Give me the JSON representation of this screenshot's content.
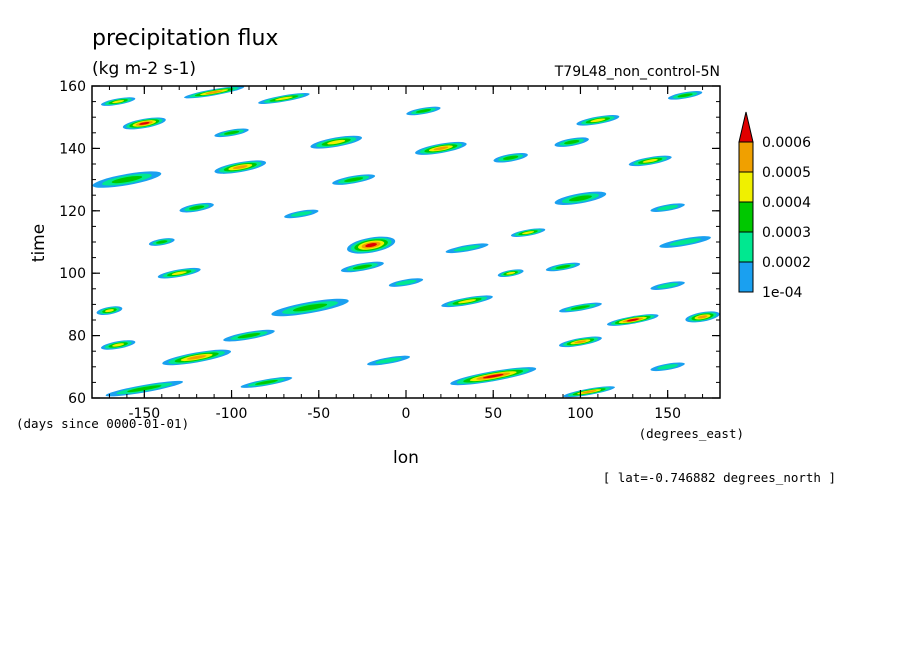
{
  "chart_data": {
    "type": "heatmap",
    "title": "precipitation flux",
    "units": "(kg m-2 s-1)",
    "dataset_label": "T79L48_non_control-5N",
    "xlabel": "lon",
    "x_units": "(degrees_east)",
    "ylabel": "time",
    "y_units": "(days since 0000-01-01)",
    "slice_note": "[ lat=-0.746882 degrees_north ]",
    "xlim": [
      -180,
      180
    ],
    "ylim": [
      60,
      160
    ],
    "x_ticks": [
      -150,
      -100,
      -50,
      0,
      50,
      100,
      150
    ],
    "x_tick_labels": [
      "-150",
      "-100",
      "-50",
      "0",
      "50",
      "100",
      "150"
    ],
    "y_ticks": [
      60,
      80,
      100,
      120,
      140,
      160
    ],
    "y_tick_labels": [
      "60",
      "80",
      "100",
      "120",
      "140",
      "160"
    ],
    "colorbar": {
      "levels": [
        0.0001,
        0.0002,
        0.0003,
        0.0004,
        0.0005,
        0.0006
      ],
      "level_labels": [
        "1e-04",
        "0.0002",
        "0.0003",
        "0.0004",
        "0.0005",
        "0.0006"
      ],
      "colors": [
        "#1aa0f0",
        "#00e890",
        "#00c800",
        "#f0f000",
        "#f0a000",
        "#e00000"
      ],
      "extend": "max"
    },
    "features": [
      {
        "lon": -20,
        "time": 109,
        "len": 28,
        "thick": 2.4,
        "level": 6
      },
      {
        "lon": -95,
        "time": 134,
        "len": 30,
        "thick": 1.6,
        "level": 5
      },
      {
        "lon": -150,
        "time": 148,
        "len": 25,
        "thick": 1.5,
        "level": 6
      },
      {
        "lon": -160,
        "time": 130,
        "len": 40,
        "thick": 1.8,
        "level": 3
      },
      {
        "lon": -120,
        "time": 121,
        "len": 20,
        "thick": 1.2,
        "level": 3
      },
      {
        "lon": -70,
        "time": 156,
        "len": 30,
        "thick": 1.0,
        "level": 4
      },
      {
        "lon": -110,
        "time": 158,
        "len": 35,
        "thick": 1.0,
        "level": 5
      },
      {
        "lon": -165,
        "time": 155,
        "len": 20,
        "thick": 1.0,
        "level": 4
      },
      {
        "lon": -40,
        "time": 142,
        "len": 30,
        "thick": 1.5,
        "level": 4
      },
      {
        "lon": -30,
        "time": 130,
        "len": 25,
        "thick": 1.2,
        "level": 3
      },
      {
        "lon": 20,
        "time": 140,
        "len": 30,
        "thick": 1.5,
        "level": 5
      },
      {
        "lon": 60,
        "time": 137,
        "len": 20,
        "thick": 1.2,
        "level": 3
      },
      {
        "lon": 95,
        "time": 142,
        "len": 20,
        "thick": 1.2,
        "level": 3
      },
      {
        "lon": 140,
        "time": 136,
        "len": 25,
        "thick": 1.2,
        "level": 4
      },
      {
        "lon": 100,
        "time": 124,
        "len": 30,
        "thick": 1.6,
        "level": 3
      },
      {
        "lon": 160,
        "time": 110,
        "len": 30,
        "thick": 1.2,
        "level": 2
      },
      {
        "lon": 70,
        "time": 113,
        "len": 20,
        "thick": 1.0,
        "level": 4
      },
      {
        "lon": 35,
        "time": 108,
        "len": 25,
        "thick": 1.0,
        "level": 2
      },
      {
        "lon": 90,
        "time": 102,
        "len": 20,
        "thick": 1.0,
        "level": 3
      },
      {
        "lon": 60,
        "time": 100,
        "len": 15,
        "thick": 1.0,
        "level": 4
      },
      {
        "lon": -25,
        "time": 102,
        "len": 25,
        "thick": 1.2,
        "level": 3
      },
      {
        "lon": -130,
        "time": 100,
        "len": 25,
        "thick": 1.2,
        "level": 4
      },
      {
        "lon": -55,
        "time": 89,
        "len": 45,
        "thick": 1.8,
        "level": 3
      },
      {
        "lon": 35,
        "time": 91,
        "len": 30,
        "thick": 1.2,
        "level": 4
      },
      {
        "lon": 100,
        "time": 89,
        "len": 25,
        "thick": 1.0,
        "level": 3
      },
      {
        "lon": 130,
        "time": 85,
        "len": 30,
        "thick": 1.2,
        "level": 6
      },
      {
        "lon": 170,
        "time": 86,
        "len": 20,
        "thick": 1.5,
        "level": 5
      },
      {
        "lon": 100,
        "time": 78,
        "len": 25,
        "thick": 1.2,
        "level": 5
      },
      {
        "lon": -120,
        "time": 73,
        "len": 40,
        "thick": 1.6,
        "level": 5
      },
      {
        "lon": -165,
        "time": 77,
        "len": 20,
        "thick": 1.2,
        "level": 4
      },
      {
        "lon": -90,
        "time": 80,
        "len": 30,
        "thick": 1.2,
        "level": 3
      },
      {
        "lon": 50,
        "time": 67,
        "len": 50,
        "thick": 1.6,
        "level": 6
      },
      {
        "lon": 105,
        "time": 62,
        "len": 30,
        "thick": 1.0,
        "level": 5
      },
      {
        "lon": -150,
        "time": 63,
        "len": 45,
        "thick": 1.2,
        "level": 3
      },
      {
        "lon": -80,
        "time": 65,
        "len": 30,
        "thick": 1.0,
        "level": 3
      },
      {
        "lon": -10,
        "time": 72,
        "len": 25,
        "thick": 1.0,
        "level": 2
      },
      {
        "lon": 150,
        "time": 70,
        "len": 20,
        "thick": 1.0,
        "level": 2
      },
      {
        "lon": -100,
        "time": 145,
        "len": 20,
        "thick": 1.0,
        "level": 3
      },
      {
        "lon": 10,
        "time": 152,
        "len": 20,
        "thick": 1.0,
        "level": 3
      },
      {
        "lon": 110,
        "time": 149,
        "len": 25,
        "thick": 1.2,
        "level": 4
      },
      {
        "lon": 160,
        "time": 157,
        "len": 20,
        "thick": 1.0,
        "level": 3
      },
      {
        "lon": -170,
        "time": 88,
        "len": 15,
        "thick": 1.2,
        "level": 4
      },
      {
        "lon": 150,
        "time": 121,
        "len": 20,
        "thick": 1.0,
        "level": 2
      },
      {
        "lon": -60,
        "time": 119,
        "len": 20,
        "thick": 1.0,
        "level": 2
      },
      {
        "lon": -140,
        "time": 110,
        "len": 15,
        "thick": 1.0,
        "level": 3
      },
      {
        "lon": 0,
        "time": 97,
        "len": 20,
        "thick": 1.0,
        "level": 2
      },
      {
        "lon": 150,
        "time": 96,
        "len": 20,
        "thick": 1.0,
        "level": 2
      }
    ]
  }
}
